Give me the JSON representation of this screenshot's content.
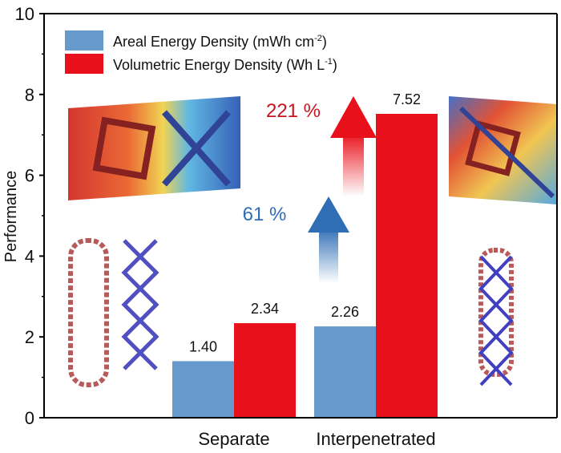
{
  "chart_data": {
    "type": "bar",
    "categories": [
      "Separate",
      "Interpenetrated"
    ],
    "series": [
      {
        "name": "Areal Energy Density (mWh cm",
        "name_sup": "-2",
        "name_end": ")",
        "values": [
          1.4,
          2.26
        ],
        "labels": [
          "1.40",
          "2.26"
        ],
        "color": "#6699cc"
      },
      {
        "name": "Volumetric Energy Density (Wh L",
        "name_sup": "-1",
        "name_end": ")",
        "values": [
          2.34,
          7.52
        ],
        "labels": [
          "2.34",
          "7.52"
        ],
        "color": "#e8101a"
      }
    ],
    "ylabel": "Performance",
    "xlabel": "",
    "ylim": [
      0,
      10
    ],
    "yticks": [
      "0",
      "2",
      "4",
      "6",
      "8",
      "10"
    ],
    "grid": false,
    "legend": "top-left",
    "annotations": [
      {
        "text": "61 %",
        "color": "#2f6db5"
      },
      {
        "text": "221 %",
        "color": "#c8141e"
      }
    ]
  }
}
